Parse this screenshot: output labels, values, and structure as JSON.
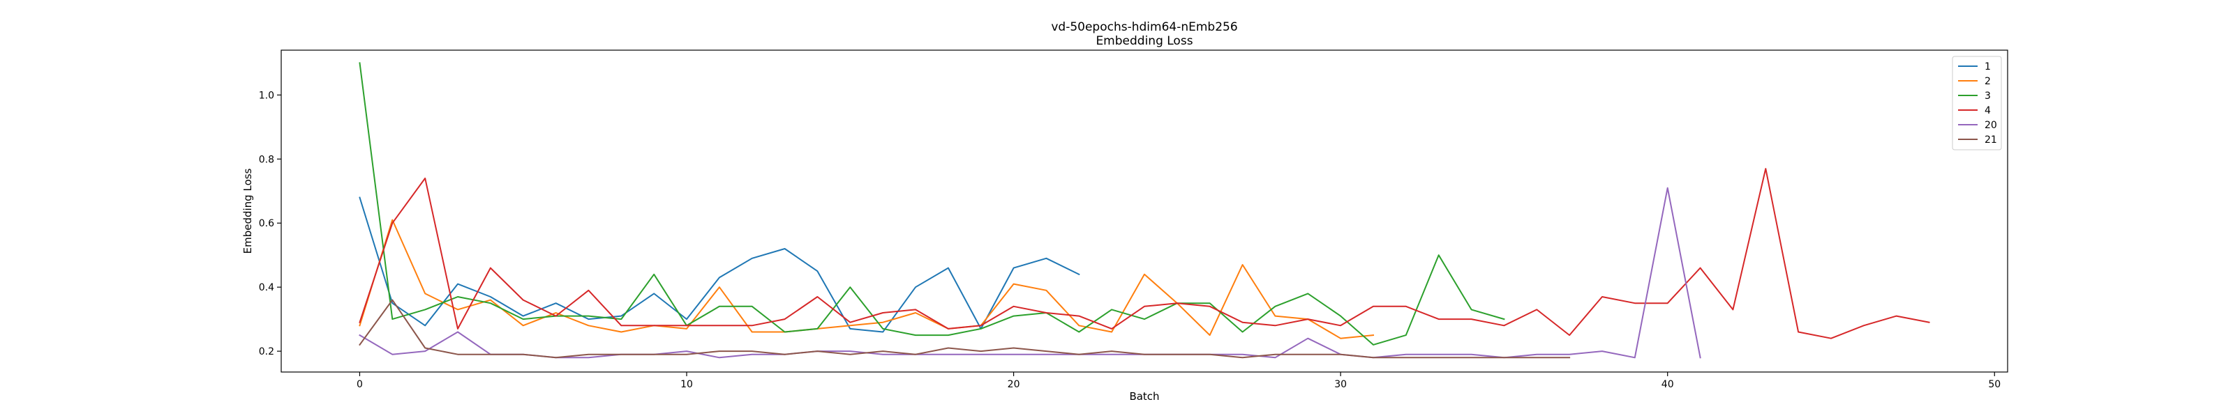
{
  "chart_data": {
    "type": "line",
    "title": "vd-50epochs-hdim64-nEmb256",
    "subtitle": "Embedding Loss",
    "xlabel": "Batch",
    "ylabel": "Embedding Loss",
    "xlim": [
      -2.4,
      50.4
    ],
    "ylim": [
      0.135,
      1.14
    ],
    "xticks": [
      0,
      10,
      20,
      30,
      40,
      50
    ],
    "yticks": [
      0.2,
      0.4,
      0.6,
      0.8,
      1.0
    ],
    "xtick_labels": [
      "0",
      "10",
      "20",
      "30",
      "40",
      "50"
    ],
    "ytick_labels": [
      "0.2",
      "0.4",
      "0.6",
      "0.8",
      "1.0"
    ],
    "grid": false,
    "legend_position": "top-right",
    "series": [
      {
        "name": "1",
        "color": "#1f77b4",
        "x": [
          0,
          1,
          2,
          3,
          4,
          5,
          6,
          7,
          8,
          9,
          10,
          11,
          12,
          13,
          14,
          15,
          16,
          17,
          18,
          19,
          20,
          21,
          22
        ],
        "y": [
          0.68,
          0.35,
          0.28,
          0.41,
          0.37,
          0.31,
          0.35,
          0.3,
          0.31,
          0.38,
          0.3,
          0.43,
          0.49,
          0.52,
          0.45,
          0.27,
          0.26,
          0.4,
          0.46,
          0.27,
          0.46,
          0.49,
          0.44
        ]
      },
      {
        "name": "2",
        "color": "#ff7f0e",
        "x": [
          0,
          1,
          2,
          3,
          4,
          5,
          6,
          7,
          8,
          9,
          10,
          11,
          12,
          13,
          14,
          15,
          16,
          17,
          18,
          19,
          20,
          21,
          22,
          23,
          24,
          25,
          26,
          27,
          28,
          29,
          30,
          31
        ],
        "y": [
          0.28,
          0.61,
          0.38,
          0.33,
          0.36,
          0.28,
          0.32,
          0.28,
          0.26,
          0.28,
          0.27,
          0.4,
          0.26,
          0.26,
          0.27,
          0.28,
          0.29,
          0.32,
          0.27,
          0.28,
          0.41,
          0.39,
          0.28,
          0.26,
          0.44,
          0.35,
          0.25,
          0.47,
          0.31,
          0.3,
          0.24,
          0.25
        ]
      },
      {
        "name": "3",
        "color": "#2ca02c",
        "x": [
          0,
          1,
          2,
          3,
          4,
          5,
          6,
          7,
          8,
          9,
          10,
          11,
          12,
          13,
          14,
          15,
          16,
          17,
          18,
          19,
          20,
          21,
          22,
          23,
          24,
          25,
          26,
          27,
          28,
          29,
          30,
          31,
          32,
          33,
          34,
          35
        ],
        "y": [
          1.1,
          0.3,
          0.33,
          0.37,
          0.35,
          0.3,
          0.31,
          0.31,
          0.3,
          0.44,
          0.28,
          0.34,
          0.34,
          0.26,
          0.27,
          0.4,
          0.27,
          0.25,
          0.25,
          0.27,
          0.31,
          0.32,
          0.26,
          0.33,
          0.3,
          0.35,
          0.35,
          0.26,
          0.34,
          0.38,
          0.31,
          0.22,
          0.25,
          0.5,
          0.33,
          0.3
        ]
      },
      {
        "name": "4",
        "color": "#d62728",
        "x": [
          0,
          1,
          2,
          3,
          4,
          5,
          6,
          7,
          8,
          9,
          10,
          11,
          12,
          13,
          14,
          15,
          16,
          17,
          18,
          19,
          20,
          21,
          22,
          23,
          24,
          25,
          26,
          27,
          28,
          29,
          30,
          31,
          32,
          33,
          34,
          35,
          36,
          37,
          38,
          39,
          40,
          41,
          42,
          43,
          44,
          45,
          46,
          47,
          48
        ],
        "y": [
          0.29,
          0.6,
          0.74,
          0.27,
          0.46,
          0.36,
          0.31,
          0.39,
          0.28,
          0.28,
          0.28,
          0.28,
          0.28,
          0.3,
          0.37,
          0.29,
          0.32,
          0.33,
          0.27,
          0.28,
          0.34,
          0.32,
          0.31,
          0.27,
          0.34,
          0.35,
          0.34,
          0.29,
          0.28,
          0.3,
          0.28,
          0.34,
          0.34,
          0.3,
          0.3,
          0.28,
          0.33,
          0.25,
          0.37,
          0.35,
          0.35,
          0.46,
          0.33,
          0.77,
          0.26,
          0.24,
          0.28,
          0.31,
          0.29
        ]
      },
      {
        "name": "20",
        "color": "#9467bd",
        "x": [
          0,
          1,
          2,
          3,
          4,
          5,
          6,
          7,
          8,
          9,
          10,
          11,
          12,
          13,
          14,
          15,
          16,
          17,
          18,
          19,
          20,
          21,
          22,
          23,
          24,
          25,
          26,
          27,
          28,
          29,
          30,
          31,
          32,
          33,
          34,
          35,
          36,
          37,
          38,
          39,
          40,
          41
        ],
        "y": [
          0.25,
          0.19,
          0.2,
          0.26,
          0.19,
          0.19,
          0.18,
          0.18,
          0.19,
          0.19,
          0.2,
          0.18,
          0.19,
          0.19,
          0.2,
          0.2,
          0.19,
          0.19,
          0.19,
          0.19,
          0.19,
          0.19,
          0.19,
          0.19,
          0.19,
          0.19,
          0.19,
          0.19,
          0.18,
          0.24,
          0.19,
          0.18,
          0.19,
          0.19,
          0.19,
          0.18,
          0.19,
          0.19,
          0.2,
          0.18,
          0.71,
          0.18
        ]
      },
      {
        "name": "21",
        "color": "#8c564b",
        "x": [
          0,
          1,
          2,
          3,
          4,
          5,
          6,
          7,
          8,
          9,
          10,
          11,
          12,
          13,
          14,
          15,
          16,
          17,
          18,
          19,
          20,
          21,
          22,
          23,
          24,
          25,
          26,
          27,
          28,
          29,
          30,
          31,
          32,
          33,
          34,
          35,
          36,
          37
        ],
        "y": [
          0.22,
          0.36,
          0.21,
          0.19,
          0.19,
          0.19,
          0.18,
          0.19,
          0.19,
          0.19,
          0.19,
          0.2,
          0.2,
          0.19,
          0.2,
          0.19,
          0.2,
          0.19,
          0.21,
          0.2,
          0.21,
          0.2,
          0.19,
          0.2,
          0.19,
          0.19,
          0.19,
          0.18,
          0.19,
          0.19,
          0.19,
          0.18,
          0.18,
          0.18,
          0.18,
          0.18,
          0.18,
          0.18
        ]
      }
    ]
  }
}
